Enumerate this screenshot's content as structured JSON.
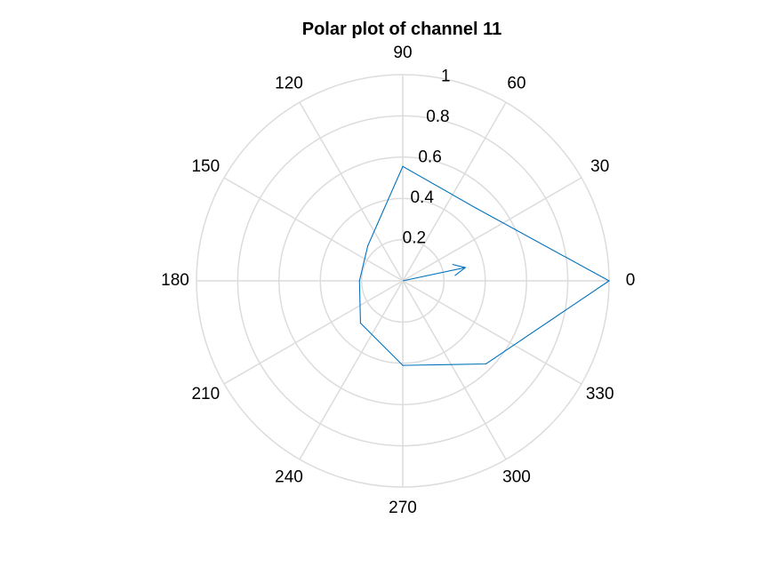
{
  "chart_data": {
    "type": "polar",
    "title": "Polar plot of channel 11",
    "theta_unit": "degrees",
    "theta_ticks": [
      0,
      30,
      60,
      90,
      120,
      150,
      180,
      210,
      240,
      270,
      300,
      330
    ],
    "theta_tick_labels": [
      "0",
      "30",
      "60",
      "90",
      "120",
      "150",
      "180",
      "210",
      "240",
      "270",
      "300",
      "330"
    ],
    "rlim": [
      0,
      1
    ],
    "r_ticks": [
      0.2,
      0.4,
      0.6,
      0.8,
      1
    ],
    "r_tick_labels": [
      "0.2",
      "0.4",
      "0.6",
      "0.8",
      "1"
    ],
    "grid": true,
    "series": [
      {
        "color": "#0072BD",
        "theta": [
          0,
          45,
          90,
          135,
          180,
          225,
          270,
          315,
          360
        ],
        "r": [
          1.0,
          0.5,
          0.555,
          0.24,
          0.21,
          0.29,
          0.41,
          0.57,
          1.0
        ]
      }
    ],
    "arrow": {
      "color": "#0072BD",
      "theta": 12,
      "r": 0.31
    }
  }
}
